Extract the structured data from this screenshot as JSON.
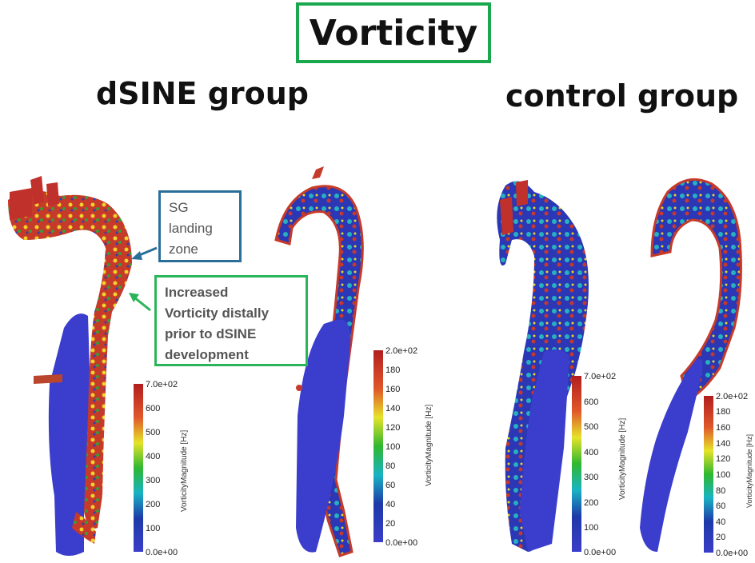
{
  "title": "Vorticity",
  "groups": {
    "dsine": "dSINE group",
    "control": "control group"
  },
  "callouts": {
    "sg_landing": [
      "SG",
      "landing",
      "zone"
    ],
    "increased_vorticity": [
      "Increased",
      "Vorticity distally",
      "prior to dSINE",
      "development"
    ]
  },
  "colorbars": [
    {
      "title": "VorticityMagnitude [Hz]",
      "ticks": [
        "7.0e+02",
        "600",
        "500",
        "400",
        "300",
        "200",
        "100",
        "0.0e+00"
      ]
    },
    {
      "title": "VorticityMagnitude [Hz]",
      "ticks": [
        "2.0e+02",
        "180",
        "160",
        "140",
        "120",
        "100",
        "80",
        "60",
        "40",
        "20",
        "0.0e+00"
      ]
    },
    {
      "title": "VorticityMagnitude [Hz]",
      "ticks": [
        "7.0e+02",
        "600",
        "500",
        "400",
        "300",
        "200",
        "100",
        "0.0e+00"
      ]
    },
    {
      "title": "VorticityMagnitude [Hz]",
      "ticks": [
        "2.0e+02",
        "180",
        "160",
        "140",
        "120",
        "100",
        "80",
        "60",
        "40",
        "20",
        "0.0e+00"
      ]
    }
  ],
  "colors": {
    "title_border": "#1aa84f",
    "sg_border": "#2a6f9a",
    "vort_border": "#2bb55a",
    "vessel_blue": "#3b3dcc",
    "vessel_red": "#c0312c"
  }
}
